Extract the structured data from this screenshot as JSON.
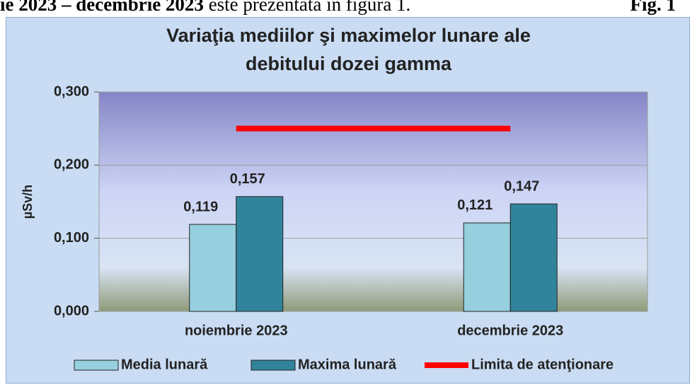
{
  "header": {
    "bold_part": "ie 2023 – decembrie 2023",
    "text": " este prezentată în figura 1.",
    "fig": "Fig. 1"
  },
  "chart_data": {
    "type": "bar",
    "title": "Variaţia mediilor şi maximelor lunare ale debitului dozei gamma",
    "y_label": "µSv/h",
    "categories": [
      "noiembrie 2023",
      "decembrie 2023"
    ],
    "series": [
      {
        "name": "Media lunară",
        "color": "#96cfde",
        "values": [
          0.119,
          0.121
        ],
        "value_labels": [
          "0,119",
          "0,121"
        ]
      },
      {
        "name": "Maxima lunară",
        "color": "#31849b",
        "values": [
          0.157,
          0.147
        ],
        "value_labels": [
          "0,157",
          "0,147"
        ]
      },
      {
        "name": "Limita de atenţionare",
        "color": "#ff0000",
        "type": "line",
        "values": [
          0.25,
          0.25
        ]
      }
    ],
    "ylim": [
      0,
      0.3
    ],
    "yticks": [
      {
        "value": 0,
        "label": "0,000"
      },
      {
        "value": 0.1,
        "label": "0,100"
      },
      {
        "value": 0.2,
        "label": "0,200"
      },
      {
        "value": 0.3,
        "label": "0,300"
      }
    ],
    "grid": true,
    "legend": "bottom"
  }
}
